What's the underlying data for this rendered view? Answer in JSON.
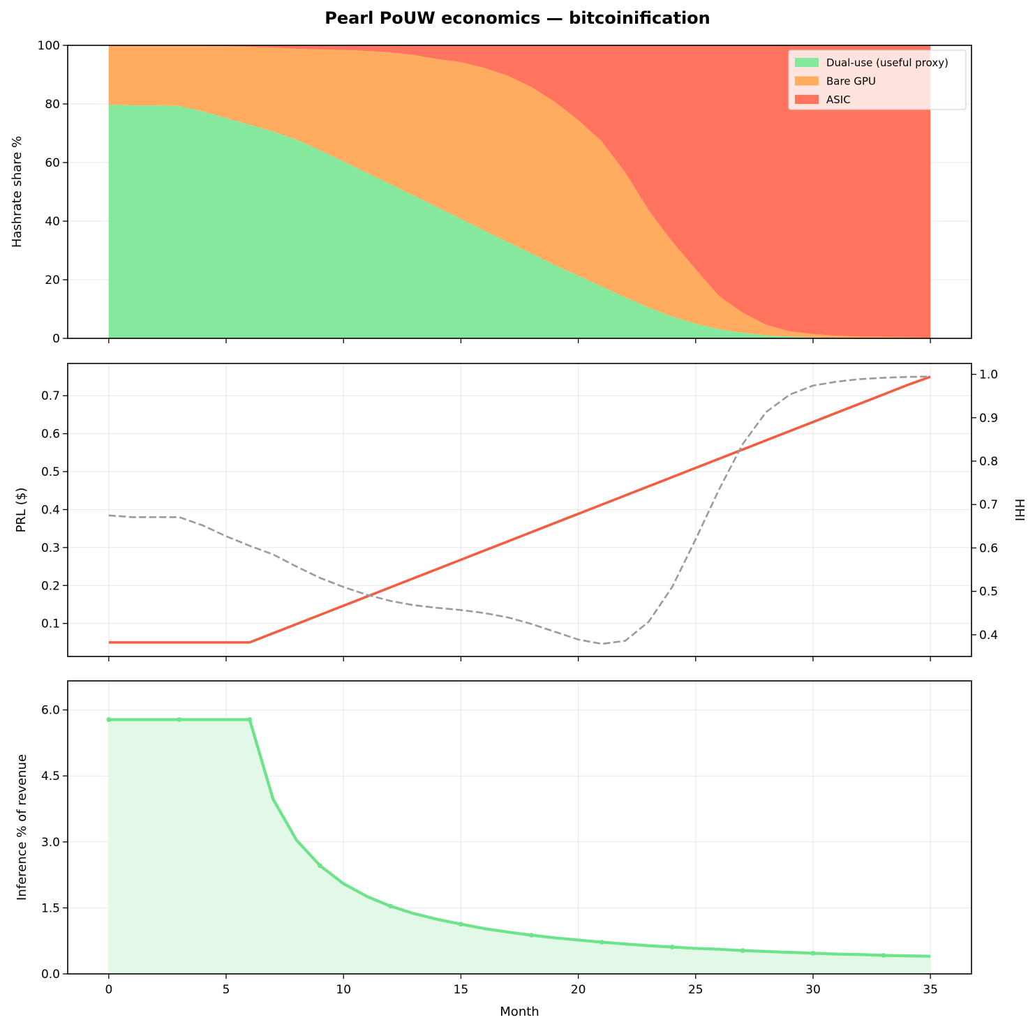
{
  "title": "Pearl PoUW economics — bitcoinification",
  "colors": {
    "dual_use": "#86e89c",
    "bare_gpu": "#ffab60",
    "asic": "#ff735f",
    "prl": "#f55d40",
    "hhi": "#9b9b9b",
    "inference": "#6de38a",
    "inference_fill": "#e3f9e8"
  },
  "chart_data": [
    {
      "type": "area",
      "stacked": true,
      "xlabel": "",
      "ylabel": "Hashrate share %",
      "ylim": [
        0,
        100
      ],
      "yticks": [
        0,
        20,
        40,
        60,
        80,
        100
      ],
      "xlim": [
        -1.75,
        36.75
      ],
      "xticks": [
        0,
        5,
        10,
        15,
        20,
        25,
        30,
        35
      ],
      "grid": true,
      "legend_position": "top-right",
      "x": [
        0,
        1,
        2,
        3,
        4,
        5,
        6,
        7,
        8,
        9,
        10,
        11,
        12,
        13,
        14,
        15,
        16,
        17,
        18,
        19,
        20,
        21,
        22,
        23,
        24,
        25,
        26,
        27,
        28,
        29,
        30,
        31,
        32,
        33,
        34,
        35
      ],
      "series": [
        {
          "name": "Dual-use (useful proxy)",
          "color_key": "dual_use",
          "values": [
            79.8,
            79.5,
            79.5,
            79.3,
            77.5,
            75.2,
            72.9,
            70.6,
            67.8,
            64.2,
            60.4,
            56.5,
            52.6,
            48.7,
            44.8,
            40.8,
            36.8,
            32.9,
            29.0,
            25.0,
            21.4,
            17.7,
            14.0,
            10.5,
            7.4,
            5.0,
            3.1,
            1.9,
            1.0,
            0.6,
            0.3,
            0.2,
            0.1,
            0.1,
            0.05,
            0.02
          ]
        },
        {
          "name": "Bare GPU",
          "color_key": "bare_gpu",
          "values": [
            20.2,
            20.5,
            20.5,
            20.7,
            22.3,
            24.5,
            26.6,
            28.7,
            31.0,
            34.4,
            38.0,
            41.6,
            45.0,
            48.0,
            50.5,
            53.5,
            55.5,
            56.7,
            56.8,
            55.7,
            53.1,
            49.5,
            42.6,
            33.2,
            25.6,
            18.6,
            11.3,
            6.9,
            3.6,
            1.8,
            1.2,
            0.7,
            0.5,
            0.4,
            0.3,
            0.2
          ]
        },
        {
          "name": "ASIC",
          "color_key": "asic",
          "values": [
            0,
            0,
            0,
            0,
            0.2,
            0.3,
            0.5,
            0.7,
            1.2,
            1.4,
            1.6,
            1.9,
            2.4,
            3.3,
            4.7,
            5.7,
            7.7,
            10.4,
            14.2,
            19.3,
            25.5,
            32.8,
            43.4,
            56.3,
            67.0,
            76.4,
            85.6,
            91.2,
            95.4,
            97.6,
            98.5,
            99.1,
            99.4,
            99.5,
            99.65,
            99.78
          ]
        }
      ]
    },
    {
      "type": "line",
      "xlabel": "",
      "ylabel": "PRL ($)",
      "y2label": "HHI",
      "ylim": [
        0.013,
        0.785
      ],
      "y2lim": [
        0.35,
        1.025
      ],
      "yticks": [
        0.1,
        0.2,
        0.3,
        0.4,
        0.5,
        0.6,
        0.7
      ],
      "ytick_labels": [
        "0.1",
        "0.2",
        "0.3",
        "0.4",
        "0.5",
        "0.6",
        "0.7"
      ],
      "y2ticks": [
        0.4,
        0.5,
        0.6,
        0.7,
        0.8,
        0.9,
        1.0
      ],
      "y2tick_labels": [
        "0.4",
        "0.5",
        "0.6",
        "0.7",
        "0.8",
        "0.9",
        "1.0"
      ],
      "xlim": [
        -1.75,
        36.75
      ],
      "xticks": [
        0,
        5,
        10,
        15,
        20,
        25,
        30,
        35
      ],
      "grid": true,
      "x": [
        0,
        1,
        2,
        3,
        4,
        5,
        6,
        7,
        8,
        9,
        10,
        11,
        12,
        13,
        14,
        15,
        16,
        17,
        18,
        19,
        20,
        21,
        22,
        23,
        24,
        25,
        26,
        27,
        28,
        29,
        30,
        31,
        32,
        33,
        34,
        35
      ],
      "series": [
        {
          "name": "",
          "axis": "left",
          "style": "solid",
          "color_key": "prl",
          "values": [
            0.05,
            0.05,
            0.05,
            0.05,
            0.05,
            0.05,
            0.05,
            0.0742,
            0.0984,
            0.1226,
            0.1468,
            0.171,
            0.1952,
            0.2194,
            0.2436,
            0.2678,
            0.292,
            0.3162,
            0.3404,
            0.3646,
            0.3888,
            0.413,
            0.4372,
            0.4614,
            0.4856,
            0.5098,
            0.534,
            0.5582,
            0.5824,
            0.6066,
            0.6308,
            0.655,
            0.6792,
            0.7034,
            0.7276,
            0.75
          ]
        },
        {
          "name": "",
          "axis": "right",
          "style": "dashed",
          "color_key": "hhi",
          "values": [
            0.675,
            0.671,
            0.671,
            0.671,
            0.652,
            0.627,
            0.605,
            0.585,
            0.557,
            0.531,
            0.51,
            0.492,
            0.478,
            0.468,
            0.462,
            0.457,
            0.45,
            0.44,
            0.425,
            0.407,
            0.389,
            0.379,
            0.386,
            0.43,
            0.51,
            0.62,
            0.735,
            0.839,
            0.913,
            0.953,
            0.974,
            0.983,
            0.989,
            0.992,
            0.994,
            0.995
          ]
        }
      ]
    },
    {
      "type": "area",
      "xlabel": "Month",
      "ylabel": "Inference % of revenue",
      "ylim": [
        0,
        6.66
      ],
      "yticks": [
        0,
        1.5,
        3,
        4.5,
        6
      ],
      "ytick_labels": [
        "0.0",
        "1.5",
        "3.0",
        "4.5",
        "6.0"
      ],
      "xlim": [
        -1.75,
        36.75
      ],
      "xticks": [
        0,
        5,
        10,
        15,
        20,
        25,
        30,
        35
      ],
      "grid": true,
      "x": [
        0,
        1,
        2,
        3,
        4,
        5,
        6,
        7,
        8,
        9,
        10,
        11,
        12,
        13,
        14,
        15,
        16,
        17,
        18,
        19,
        20,
        21,
        22,
        23,
        24,
        25,
        26,
        27,
        28,
        29,
        30,
        31,
        32,
        33,
        34,
        35
      ],
      "marker_every": 3,
      "series": [
        {
          "name": "",
          "color_key": "inference",
          "values": [
            5.78,
            5.78,
            5.78,
            5.78,
            5.78,
            5.78,
            5.78,
            3.97,
            3.04,
            2.46,
            2.05,
            1.76,
            1.54,
            1.37,
            1.24,
            1.13,
            1.03,
            0.95,
            0.88,
            0.82,
            0.77,
            0.72,
            0.68,
            0.64,
            0.61,
            0.58,
            0.56,
            0.53,
            0.51,
            0.49,
            0.47,
            0.45,
            0.44,
            0.42,
            0.41,
            0.4
          ]
        }
      ]
    }
  ]
}
